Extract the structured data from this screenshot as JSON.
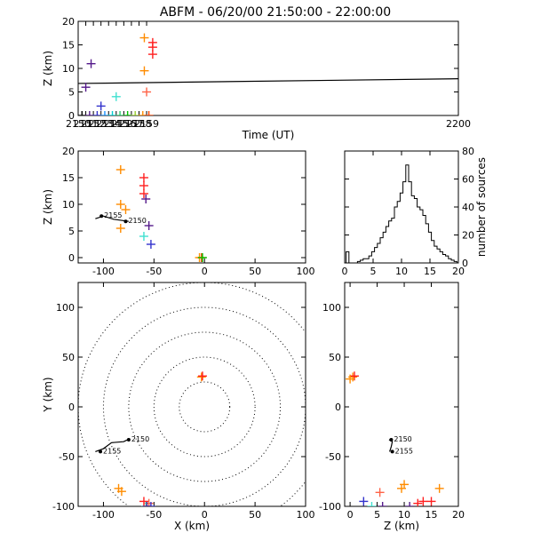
{
  "chart_data": [
    {
      "id": "time_panel",
      "type": "scatter",
      "title": "ABFM - 06/20/00 21:50:00 - 22:00:00",
      "xlabel": "Time (UT)",
      "ylabel": "Z (km)",
      "xlim": [
        2150,
        2200
      ],
      "ylim": [
        0,
        20
      ],
      "xticks": [
        "2150",
        "2151",
        "2152",
        "2153",
        "2154",
        "2155",
        "2156",
        "2157",
        "2158",
        "2159",
        "2200"
      ],
      "yticks": [
        "0",
        "5",
        "10",
        "15",
        "20"
      ],
      "points": [
        {
          "x": 2150.5,
          "y": 0,
          "color": "#000000"
        },
        {
          "x": 2151.0,
          "y": 6,
          "color": "#551a8b"
        },
        {
          "x": 2151.5,
          "y": 0,
          "color": "#551a8b"
        },
        {
          "x": 2151.7,
          "y": 11,
          "color": "#551a8b"
        },
        {
          "x": 2152.5,
          "y": 0,
          "color": "#3333cc"
        },
        {
          "x": 2153.0,
          "y": 2,
          "color": "#3333cc"
        },
        {
          "x": 2153.5,
          "y": 0,
          "color": "#1e90ff"
        },
        {
          "x": 2154.5,
          "y": 0,
          "color": "#00ced1"
        },
        {
          "x": 2155.0,
          "y": 4,
          "color": "#40e0d0"
        },
        {
          "x": 2155.5,
          "y": 0,
          "color": "#2ecc71"
        },
        {
          "x": 2156.5,
          "y": 0,
          "color": "#00c000"
        },
        {
          "x": 2157.5,
          "y": 0,
          "color": "#9acd32"
        },
        {
          "x": 2158.5,
          "y": 0,
          "color": "#ff8c00"
        },
        {
          "x": 2158.7,
          "y": 16.5,
          "color": "#ff8c00"
        },
        {
          "x": 2158.7,
          "y": 9.5,
          "color": "#ff8c00"
        },
        {
          "x": 2159.0,
          "y": 5,
          "color": "#ff6347"
        },
        {
          "x": 2159.3,
          "y": 0,
          "color": "#ff4500"
        },
        {
          "x": 2159.8,
          "y": 15.5,
          "color": "#ff2020"
        },
        {
          "x": 2159.8,
          "y": 14.5,
          "color": "#ff2020"
        },
        {
          "x": 2159.8,
          "y": 13,
          "color": "#ff2020"
        }
      ],
      "line": [
        [
          2150,
          6.8
        ],
        [
          2200,
          7.8
        ]
      ]
    },
    {
      "id": "xz_panel",
      "type": "scatter",
      "xlabel": "",
      "ylabel": "Z (km)",
      "xlim": [
        -125,
        100
      ],
      "ylim": [
        -1,
        20
      ],
      "xticks": [
        "-100",
        "-50",
        "0",
        "50",
        "100"
      ],
      "yticks": [
        "0",
        "5",
        "10",
        "15",
        "20"
      ],
      "points": [
        {
          "x": -83,
          "y": 16.5,
          "color": "#ff8c00"
        },
        {
          "x": -83,
          "y": 10,
          "color": "#ff8c00"
        },
        {
          "x": -78,
          "y": 9,
          "color": "#ff8c00"
        },
        {
          "x": -83,
          "y": 5.5,
          "color": "#ff8c00"
        },
        {
          "x": -60,
          "y": 15,
          "color": "#ff2020"
        },
        {
          "x": -60,
          "y": 13.5,
          "color": "#ff2020"
        },
        {
          "x": -60,
          "y": 12,
          "color": "#ff2020"
        },
        {
          "x": -58,
          "y": 11,
          "color": "#551a8b"
        },
        {
          "x": -55,
          "y": 6,
          "color": "#551a8b"
        },
        {
          "x": -60,
          "y": 4,
          "color": "#40e0d0"
        },
        {
          "x": -53,
          "y": 2.5,
          "color": "#3333cc"
        },
        {
          "x": -3,
          "y": 0,
          "color": "#ff4500"
        },
        {
          "x": -5,
          "y": 0,
          "color": "#ff8c00"
        },
        {
          "x": -2,
          "y": 0,
          "color": "#00c000"
        }
      ],
      "line": [
        [
          -108,
          7.3
        ],
        [
          -100,
          7.8
        ],
        [
          -90,
          7.2
        ],
        [
          -75,
          6.8
        ]
      ],
      "line_labels": [
        {
          "text": "2155",
          "x": -102,
          "y": 7.8
        },
        {
          "text": "2150",
          "x": -78,
          "y": 6.8
        }
      ]
    },
    {
      "id": "histogram_panel",
      "type": "bar",
      "xlabel": "",
      "y2label": "number of sources",
      "xlim": [
        0,
        20
      ],
      "ylim": [
        0,
        80
      ],
      "xticks": [
        "0",
        "5",
        "10",
        "15",
        "20"
      ],
      "y2ticks": [
        "0",
        "20",
        "40",
        "60",
        "80"
      ],
      "categories": [
        0.5,
        1,
        1.5,
        2,
        2.5,
        3,
        3.5,
        4,
        4.5,
        5,
        5.5,
        6,
        6.5,
        7,
        7.5,
        8,
        8.5,
        9,
        9.5,
        10,
        10.5,
        11,
        11.5,
        12,
        12.5,
        13,
        13.5,
        14,
        14.5,
        15,
        15.5,
        16,
        16.5,
        17,
        17.5,
        18,
        18.5,
        19,
        19.5
      ],
      "values": [
        8,
        0,
        0,
        0,
        1,
        2,
        3,
        3,
        5,
        8,
        11,
        14,
        18,
        22,
        26,
        30,
        32,
        40,
        44,
        50,
        58,
        70,
        58,
        48,
        46,
        40,
        38,
        34,
        28,
        22,
        16,
        12,
        10,
        8,
        6,
        5,
        3,
        2,
        1
      ]
    },
    {
      "id": "xy_panel",
      "type": "scatter",
      "xlabel": "X (km)",
      "ylabel": "Y (km)",
      "xlim": [
        -125,
        100
      ],
      "ylim": [
        -100,
        125
      ],
      "xticks": [
        "-100",
        "-50",
        "0",
        "50",
        "100"
      ],
      "yticks": [
        "-100",
        "-50",
        "0",
        "50",
        "100"
      ],
      "rings": [
        25,
        50,
        75,
        100,
        125
      ],
      "points": [
        {
          "x": -3,
          "y": 30,
          "color": "#ff8c00"
        },
        {
          "x": -2,
          "y": 31,
          "color": "#ff2020"
        },
        {
          "x": -85,
          "y": -82,
          "color": "#ff8c00"
        },
        {
          "x": -82,
          "y": -85,
          "color": "#ff8c00"
        },
        {
          "x": -60,
          "y": -95,
          "color": "#ff2020"
        },
        {
          "x": -55,
          "y": -97,
          "color": "#ff6347"
        },
        {
          "x": -58,
          "y": -100,
          "color": "#40e0d0"
        },
        {
          "x": -53,
          "y": -100,
          "color": "#3333cc"
        },
        {
          "x": -57,
          "y": -100,
          "color": "#551a8b"
        }
      ],
      "line": [
        [
          -108,
          -45
        ],
        [
          -100,
          -42
        ],
        [
          -92,
          -36
        ],
        [
          -80,
          -35
        ],
        [
          -76,
          -33
        ]
      ],
      "line_labels": [
        {
          "text": "2155",
          "x": -103,
          "y": -45
        },
        {
          "text": "2150",
          "x": -75,
          "y": -33
        }
      ]
    },
    {
      "id": "zy_panel",
      "type": "scatter",
      "xlabel": "Z (km)",
      "ylabel": "",
      "xlim": [
        -1,
        20
      ],
      "ylim": [
        -100,
        125
      ],
      "xticks": [
        "0",
        "5",
        "10",
        "15",
        "20"
      ],
      "yticks": [
        "-100",
        "-50",
        "0",
        "50",
        "100"
      ],
      "points": [
        {
          "x": 0.5,
          "y": 30,
          "color": "#ff8c00"
        },
        {
          "x": 0.8,
          "y": 31,
          "color": "#ff2020"
        },
        {
          "x": 0,
          "y": 28,
          "color": "#ff8c00"
        },
        {
          "x": 16.5,
          "y": -82,
          "color": "#ff8c00"
        },
        {
          "x": 10,
          "y": -78,
          "color": "#ff8c00"
        },
        {
          "x": 9.5,
          "y": -82,
          "color": "#ff8c00"
        },
        {
          "x": 5.5,
          "y": -86,
          "color": "#ff6347"
        },
        {
          "x": 15,
          "y": -95,
          "color": "#ff2020"
        },
        {
          "x": 13.5,
          "y": -95,
          "color": "#ff2020"
        },
        {
          "x": 12.5,
          "y": -97,
          "color": "#ff2020"
        },
        {
          "x": 11,
          "y": -100,
          "color": "#551a8b"
        },
        {
          "x": 6,
          "y": -100,
          "color": "#551a8b"
        },
        {
          "x": 4,
          "y": -100,
          "color": "#40e0d0"
        },
        {
          "x": 2.5,
          "y": -95,
          "color": "#3333cc"
        }
      ],
      "line": [
        [
          7.3,
          -45
        ],
        [
          7.6,
          -40
        ],
        [
          7.8,
          -35
        ],
        [
          7.2,
          -33
        ]
      ],
      "line_labels": [
        {
          "text": "2150",
          "x": 7.6,
          "y": -33
        },
        {
          "text": "2155",
          "x": 7.8,
          "y": -45
        }
      ]
    }
  ]
}
